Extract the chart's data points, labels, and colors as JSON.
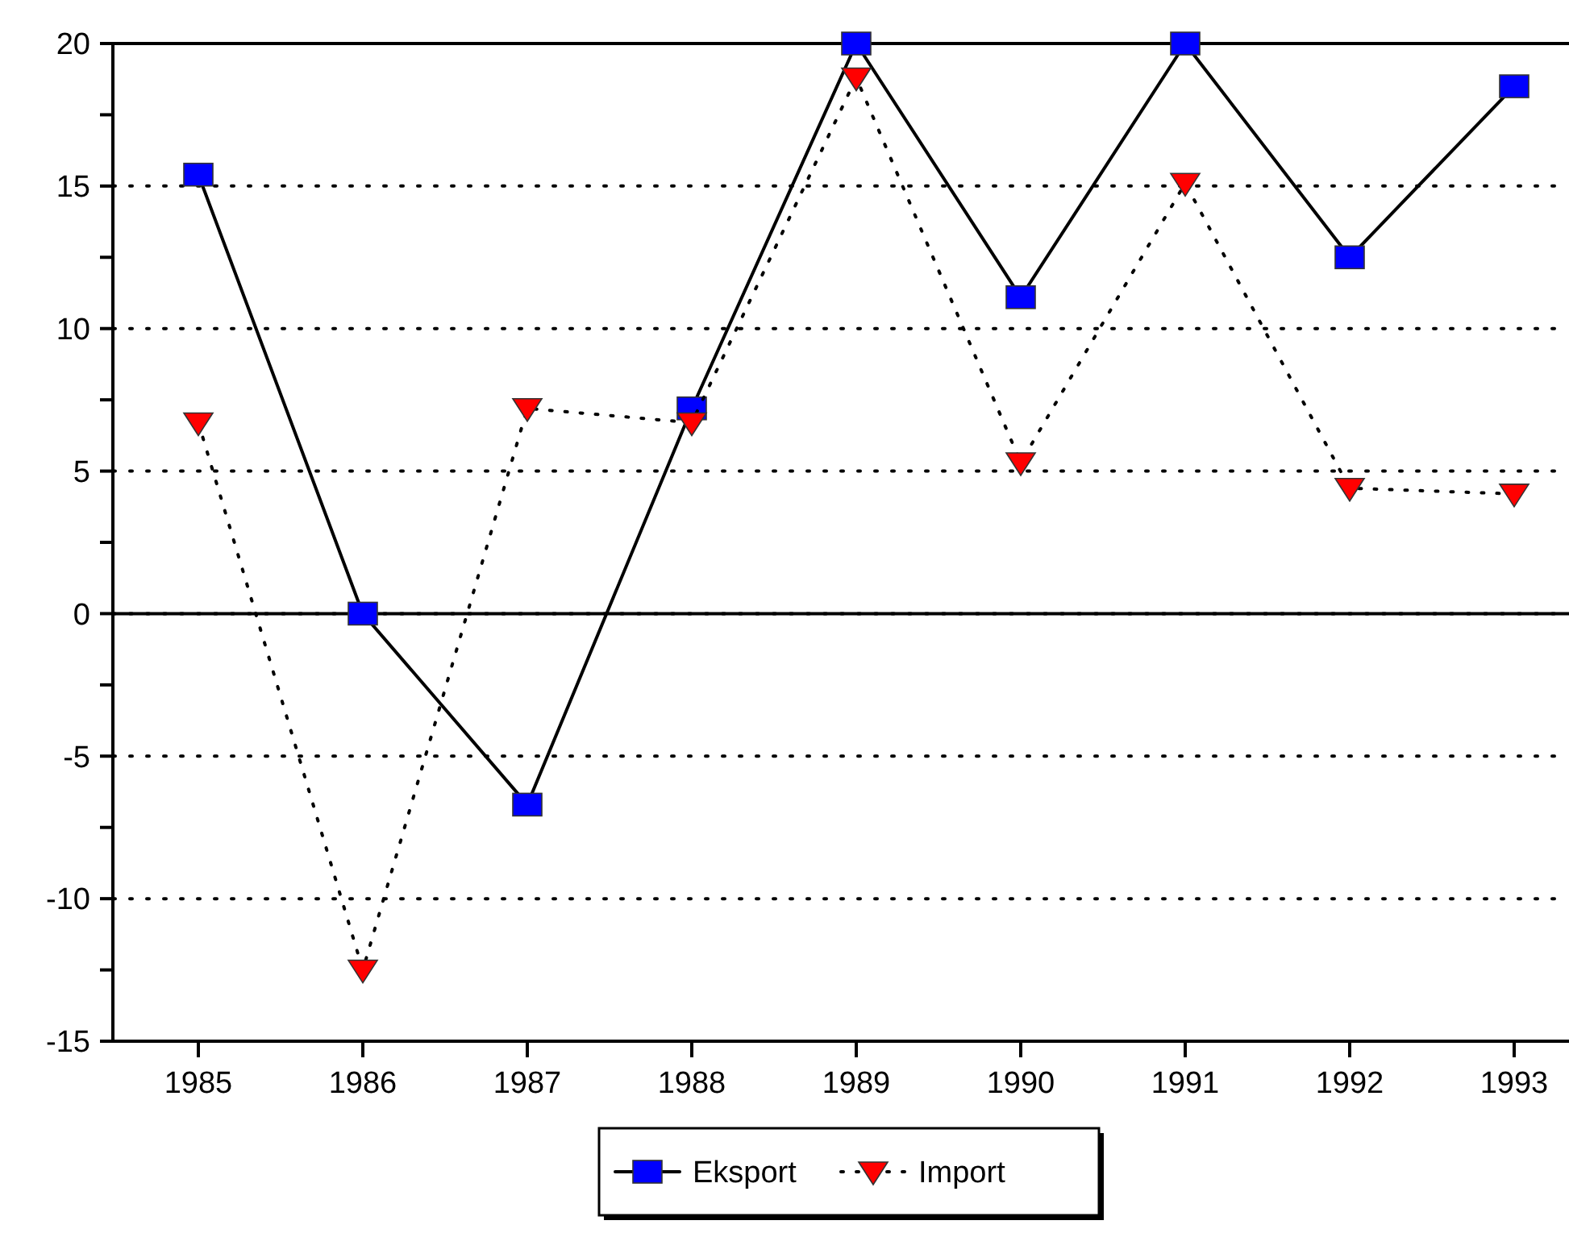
{
  "chart_data": {
    "type": "line",
    "categories": [
      "1985",
      "1986",
      "1987",
      "1988",
      "1989",
      "1990",
      "1991",
      "1992",
      "1993"
    ],
    "series": [
      {
        "name": "Eksport",
        "color": "#0000ff",
        "marker": "square",
        "line_style": "solid",
        "values": [
          15.4,
          0,
          -6.7,
          7.2,
          20,
          11.1,
          20,
          12.5,
          18.5
        ]
      },
      {
        "name": "Import",
        "color": "#ff0000",
        "marker": "triangle",
        "line_style": "dotted",
        "values": [
          6.7,
          -12.5,
          7.2,
          6.7,
          18.8,
          5.3,
          15.1,
          4.4,
          4.2
        ]
      }
    ],
    "ylim": [
      -15,
      20
    ],
    "yticks": [
      -15,
      {
        "value": -12.5,
        "label": null
      },
      -10,
      {
        "value": -7.5,
        "label": null
      },
      -5,
      {
        "value": -2.5,
        "label": null
      },
      0,
      {
        "value": 2.5,
        "label": null
      },
      5,
      {
        "value": 7.5,
        "label": null
      },
      10,
      {
        "value": 12.5,
        "label": null
      },
      15,
      {
        "value": 17.5,
        "label": null
      },
      20
    ],
    "ref_lines": [
      {
        "axis": "y",
        "value": 0
      }
    ],
    "grid": "y",
    "legend": "bottom"
  }
}
